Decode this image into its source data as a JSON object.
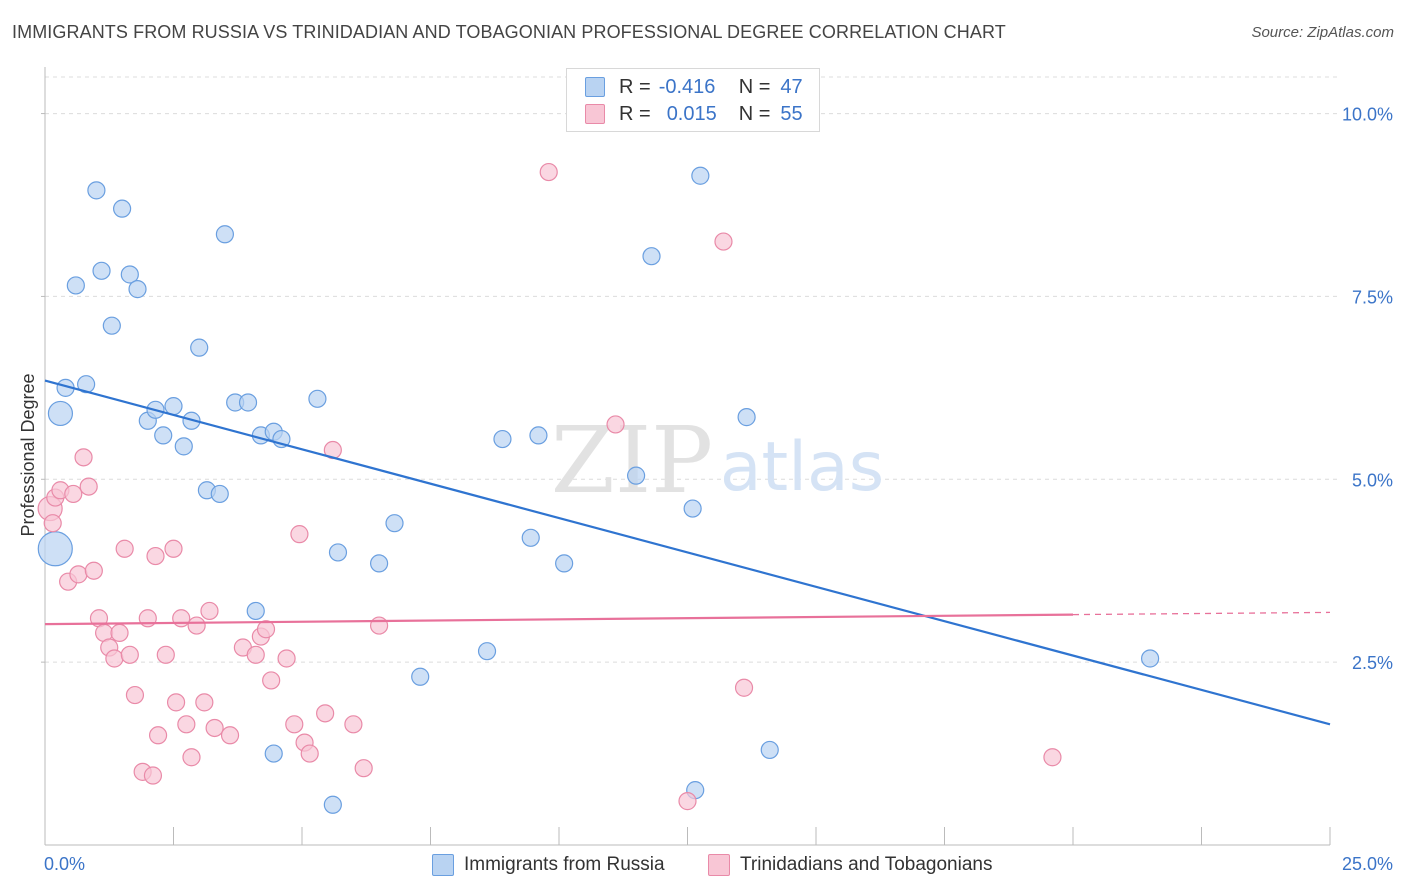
{
  "header": {
    "title": "IMMIGRANTS FROM RUSSIA VS TRINIDADIAN AND TOBAGONIAN PROFESSIONAL DEGREE CORRELATION CHART",
    "source": "Source: ZipAtlas.com"
  },
  "watermark": {
    "zip": "ZIP",
    "atlas": "atlas"
  },
  "stats_legend": {
    "rows": [
      {
        "r_label": "R =",
        "r_value": "-0.416",
        "n_label": "N =",
        "n_value": "47"
      },
      {
        "r_label": "R =",
        "r_value": "0.015",
        "n_label": "N =",
        "n_value": "55"
      }
    ]
  },
  "colors": {
    "blue_fill": "#b9d3f2",
    "blue_stroke": "#6a9fe0",
    "blue_line": "#2f74d0",
    "pink_fill": "#f8c6d5",
    "pink_stroke": "#e98aa8",
    "pink_line": "#e8719a",
    "axis_text": "#3b74c8",
    "grid": "#dcdcdc"
  },
  "chart_data": {
    "type": "scatter",
    "title": "IMMIGRANTS FROM RUSSIA VS TRINIDADIAN AND TOBAGONIAN PROFESSIONAL DEGREE CORRELATION CHART",
    "xlabel": "",
    "ylabel": "Professional Degree",
    "xlim": [
      0,
      25
    ],
    "ylim": [
      0,
      10.5
    ],
    "x_tick_labels": [
      "0.0%",
      "25.0%"
    ],
    "y_ticks": [
      2.5,
      5.0,
      7.5,
      10.0
    ],
    "y_tick_labels": [
      "2.5%",
      "5.0%",
      "7.5%",
      "10.0%"
    ],
    "grid": "horizontal dashed",
    "legend_position": "bottom",
    "series": [
      {
        "name": "Immigrants from Russia",
        "color": "#6a9fe0",
        "trend": {
          "x": [
            0,
            25
          ],
          "y": [
            6.35,
            1.65
          ]
        },
        "points": [
          {
            "x": 0.2,
            "y": 4.05,
            "big": 2
          },
          {
            "x": 0.3,
            "y": 5.9,
            "big": 1
          },
          {
            "x": 0.4,
            "y": 6.25
          },
          {
            "x": 0.8,
            "y": 6.3
          },
          {
            "x": 1.0,
            "y": 8.95
          },
          {
            "x": 0.6,
            "y": 7.65
          },
          {
            "x": 1.1,
            "y": 7.85
          },
          {
            "x": 1.3,
            "y": 7.1
          },
          {
            "x": 1.5,
            "y": 8.7
          },
          {
            "x": 1.65,
            "y": 7.8
          },
          {
            "x": 1.8,
            "y": 7.6
          },
          {
            "x": 2.0,
            "y": 5.8
          },
          {
            "x": 2.15,
            "y": 5.95
          },
          {
            "x": 2.3,
            "y": 5.6
          },
          {
            "x": 2.5,
            "y": 6.0
          },
          {
            "x": 2.7,
            "y": 5.45
          },
          {
            "x": 2.85,
            "y": 5.8
          },
          {
            "x": 3.0,
            "y": 6.8
          },
          {
            "x": 3.15,
            "y": 4.85
          },
          {
            "x": 3.4,
            "y": 4.8
          },
          {
            "x": 3.5,
            "y": 8.35
          },
          {
            "x": 3.7,
            "y": 6.05
          },
          {
            "x": 3.95,
            "y": 6.05
          },
          {
            "x": 4.2,
            "y": 5.6
          },
          {
            "x": 4.45,
            "y": 5.65
          },
          {
            "x": 4.6,
            "y": 5.55
          },
          {
            "x": 5.3,
            "y": 6.1
          },
          {
            "x": 4.1,
            "y": 3.2
          },
          {
            "x": 5.7,
            "y": 4.0
          },
          {
            "x": 6.5,
            "y": 3.85
          },
          {
            "x": 6.8,
            "y": 4.4
          },
          {
            "x": 4.45,
            "y": 1.25
          },
          {
            "x": 5.6,
            "y": 0.55
          },
          {
            "x": 7.3,
            "y": 2.3
          },
          {
            "x": 8.6,
            "y": 2.65
          },
          {
            "x": 8.9,
            "y": 5.55
          },
          {
            "x": 9.45,
            "y": 4.2
          },
          {
            "x": 9.6,
            "y": 5.6
          },
          {
            "x": 10.1,
            "y": 3.85
          },
          {
            "x": 11.5,
            "y": 5.05
          },
          {
            "x": 11.8,
            "y": 8.05
          },
          {
            "x": 12.6,
            "y": 4.6
          },
          {
            "x": 12.75,
            "y": 9.15
          },
          {
            "x": 12.65,
            "y": 0.75
          },
          {
            "x": 13.65,
            "y": 5.85
          },
          {
            "x": 14.1,
            "y": 1.3
          },
          {
            "x": 21.5,
            "y": 2.55
          }
        ]
      },
      {
        "name": "Trinidadians and Tobagonians",
        "color": "#e98aa8",
        "trend": {
          "x": [
            0,
            20
          ],
          "y": [
            3.02,
            3.15
          ]
        },
        "trend_dashed": {
          "x": [
            20,
            25
          ],
          "y": [
            3.15,
            3.18
          ]
        },
        "points": [
          {
            "x": 0.1,
            "y": 4.6,
            "big": 1
          },
          {
            "x": 0.15,
            "y": 4.4
          },
          {
            "x": 0.2,
            "y": 4.75
          },
          {
            "x": 0.3,
            "y": 4.85
          },
          {
            "x": 0.55,
            "y": 4.8
          },
          {
            "x": 0.75,
            "y": 5.3
          },
          {
            "x": 0.85,
            "y": 4.9
          },
          {
            "x": 0.45,
            "y": 3.6
          },
          {
            "x": 0.65,
            "y": 3.7
          },
          {
            "x": 0.95,
            "y": 3.75
          },
          {
            "x": 1.05,
            "y": 3.1
          },
          {
            "x": 1.15,
            "y": 2.9
          },
          {
            "x": 1.25,
            "y": 2.7
          },
          {
            "x": 1.35,
            "y": 2.55
          },
          {
            "x": 1.45,
            "y": 2.9
          },
          {
            "x": 1.55,
            "y": 4.05
          },
          {
            "x": 1.65,
            "y": 2.6
          },
          {
            "x": 1.75,
            "y": 2.05
          },
          {
            "x": 1.9,
            "y": 1.0
          },
          {
            "x": 2.0,
            "y": 3.1
          },
          {
            "x": 2.1,
            "y": 0.95
          },
          {
            "x": 2.15,
            "y": 3.95
          },
          {
            "x": 2.2,
            "y": 1.5
          },
          {
            "x": 2.35,
            "y": 2.6
          },
          {
            "x": 2.5,
            "y": 4.05
          },
          {
            "x": 2.55,
            "y": 1.95
          },
          {
            "x": 2.65,
            "y": 3.1
          },
          {
            "x": 2.75,
            "y": 1.65
          },
          {
            "x": 2.85,
            "y": 1.2
          },
          {
            "x": 2.95,
            "y": 3.0
          },
          {
            "x": 3.1,
            "y": 1.95
          },
          {
            "x": 3.2,
            "y": 3.2
          },
          {
            "x": 3.3,
            "y": 1.6
          },
          {
            "x": 3.6,
            "y": 1.5
          },
          {
            "x": 3.85,
            "y": 2.7
          },
          {
            "x": 4.1,
            "y": 2.6
          },
          {
            "x": 4.2,
            "y": 2.85
          },
          {
            "x": 4.3,
            "y": 2.95
          },
          {
            "x": 4.4,
            "y": 2.25
          },
          {
            "x": 4.7,
            "y": 2.55
          },
          {
            "x": 4.85,
            "y": 1.65
          },
          {
            "x": 4.95,
            "y": 4.25
          },
          {
            "x": 5.05,
            "y": 1.4
          },
          {
            "x": 5.15,
            "y": 1.25
          },
          {
            "x": 5.45,
            "y": 1.8
          },
          {
            "x": 5.6,
            "y": 5.4
          },
          {
            "x": 6.0,
            "y": 1.65
          },
          {
            "x": 6.2,
            "y": 1.05
          },
          {
            "x": 6.5,
            "y": 3.0
          },
          {
            "x": 9.8,
            "y": 9.2
          },
          {
            "x": 11.1,
            "y": 5.75
          },
          {
            "x": 12.5,
            "y": 0.6
          },
          {
            "x": 13.2,
            "y": 8.25
          },
          {
            "x": 13.6,
            "y": 2.15
          },
          {
            "x": 19.6,
            "y": 1.2
          }
        ]
      }
    ]
  }
}
